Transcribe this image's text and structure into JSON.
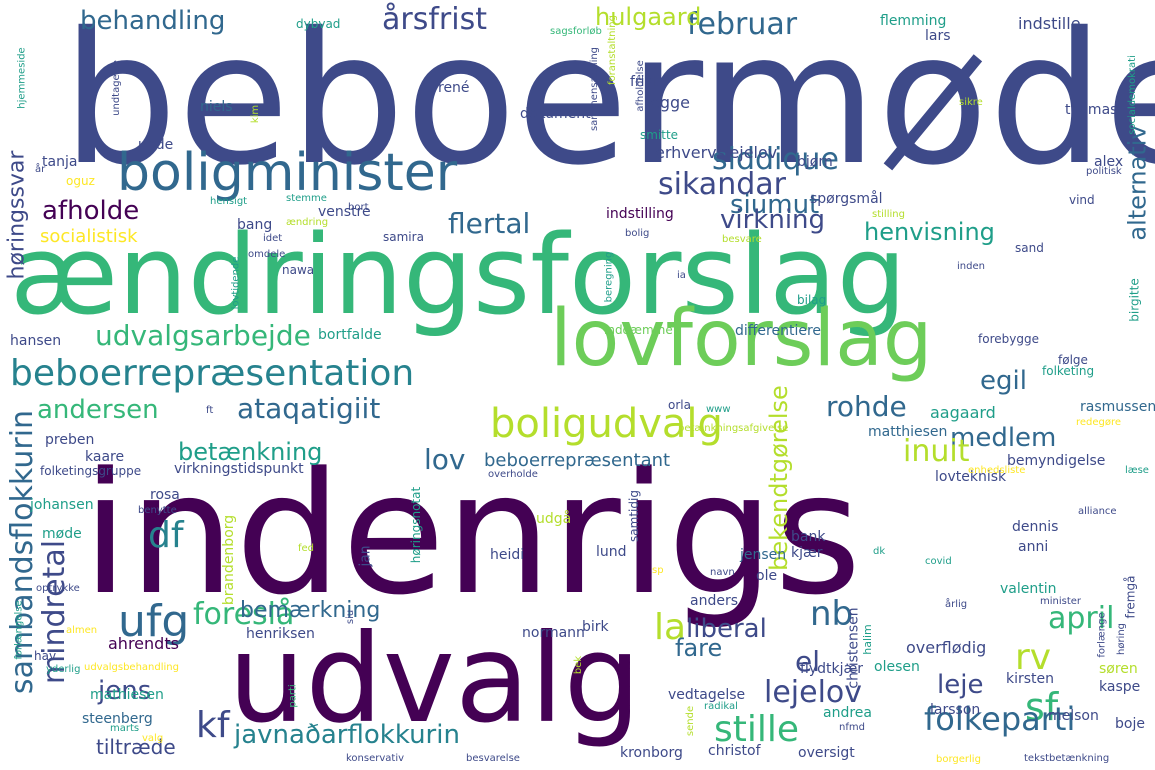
{
  "colors": {
    "background": "#ffffff",
    "palette": [
      "#440154",
      "#482878",
      "#3e4a89",
      "#31688e",
      "#26828e",
      "#1f9e89",
      "#35b779",
      "#6dcd59",
      "#b4de2c",
      "#fde725"
    ]
  },
  "words": [
    {
      "text": "beboermøde",
      "color": "#3e4a89"
    },
    {
      "text": "ændringsforslag",
      "color": "#35b779"
    },
    {
      "text": "indenrigs",
      "color": "#440154"
    },
    {
      "text": "udvalg",
      "color": "#440154"
    },
    {
      "text": "boligminister",
      "color": "#31688e"
    },
    {
      "text": "lovforslag",
      "color": "#6dcd59"
    },
    {
      "text": "beboerrepræsentation",
      "color": "#26828e"
    },
    {
      "text": "boligudvalg",
      "color": "#b4de2c"
    },
    {
      "text": "sambandsflokkurin",
      "color": "#31688e"
    },
    {
      "text": "mindretal",
      "color": "#3e4a89"
    },
    {
      "text": "udvalgsarbejde",
      "color": "#35b779"
    },
    {
      "text": "javnaðarflokkurin",
      "color": "#26828e"
    },
    {
      "text": "ataqatigiit",
      "color": "#31688e"
    },
    {
      "text": "siddique",
      "color": "#31688e"
    },
    {
      "text": "sikandar",
      "color": "#3e4a89"
    },
    {
      "text": "siumut",
      "color": "#31688e"
    },
    {
      "text": "flertal",
      "color": "#31688e"
    },
    {
      "text": "virkning",
      "color": "#3e4a89"
    },
    {
      "text": "afholde",
      "color": "#440154"
    },
    {
      "text": "behandling",
      "color": "#31688e"
    },
    {
      "text": "årsfrist",
      "color": "#3e4a89"
    },
    {
      "text": "februar",
      "color": "#31688e"
    },
    {
      "text": "hulgaard",
      "color": "#b4de2c"
    },
    {
      "text": "alternativ",
      "color": "#31688e"
    },
    {
      "text": "høringssvar",
      "color": "#3e4a89"
    },
    {
      "text": "henvisning",
      "color": "#1f9e89"
    },
    {
      "text": "socialistisk",
      "color": "#fde725"
    },
    {
      "text": "andersen",
      "color": "#35b779"
    },
    {
      "text": "rohde",
      "color": "#31688e"
    },
    {
      "text": "egil",
      "color": "#31688e"
    },
    {
      "text": "medlem",
      "color": "#31688e"
    },
    {
      "text": "inuit",
      "color": "#b4de2c"
    },
    {
      "text": "bekendtgørelse",
      "color": "#b4de2c"
    },
    {
      "text": "betænkning",
      "color": "#1f9e89"
    },
    {
      "text": "lov",
      "color": "#31688e"
    },
    {
      "text": "beboerrepræsentant",
      "color": "#31688e"
    },
    {
      "text": "df",
      "color": "#26828e"
    },
    {
      "text": "foreslå",
      "color": "#35b779"
    },
    {
      "text": "ufg",
      "color": "#31688e"
    },
    {
      "text": "bemærkning",
      "color": "#31688e"
    },
    {
      "text": "nb",
      "color": "#31688e"
    },
    {
      "text": "la",
      "color": "#b4de2c"
    },
    {
      "text": "liberal",
      "color": "#3e4a89"
    },
    {
      "text": "april",
      "color": "#35b779"
    },
    {
      "text": "rv",
      "color": "#b4de2c"
    },
    {
      "text": "el",
      "color": "#3e4a89"
    },
    {
      "text": "fare",
      "color": "#31688e"
    },
    {
      "text": "lejelov",
      "color": "#3e4a89"
    },
    {
      "text": "leje",
      "color": "#3e4a89"
    },
    {
      "text": "sf",
      "color": "#35b779"
    },
    {
      "text": "jens",
      "color": "#3e4a89"
    },
    {
      "text": "kf",
      "color": "#3e4a89"
    },
    {
      "text": "stille",
      "color": "#35b779"
    },
    {
      "text": "folkeparti",
      "color": "#31688e"
    },
    {
      "text": "tiltræde",
      "color": "#3e4a89"
    },
    {
      "text": "aagaard",
      "color": "#1f9e89"
    },
    {
      "text": "matthiesen",
      "color": "#31688e"
    },
    {
      "text": "bemyndigelse",
      "color": "#3e4a89"
    },
    {
      "text": "lovteknisk",
      "color": "#3e4a89"
    },
    {
      "text": "rasmussen",
      "color": "#31688e"
    },
    {
      "text": "preben",
      "color": "#3e4a89"
    },
    {
      "text": "kaare",
      "color": "#3e4a89"
    },
    {
      "text": "virkningstidspunkt",
      "color": "#3e4a89"
    },
    {
      "text": "folketingsgruppe",
      "color": "#3e4a89"
    },
    {
      "text": "ahrendts",
      "color": "#440154"
    },
    {
      "text": "henriksen",
      "color": "#3e4a89"
    },
    {
      "text": "normann",
      "color": "#3e4a89"
    },
    {
      "text": "birk",
      "color": "#3e4a89"
    },
    {
      "text": "overflødig",
      "color": "#3e4a89"
    },
    {
      "text": "olesen",
      "color": "#1f9e89"
    },
    {
      "text": "kirsten",
      "color": "#3e4a89"
    },
    {
      "text": "steenberg",
      "color": "#31688e"
    },
    {
      "text": "mathiesen",
      "color": "#1f9e89"
    },
    {
      "text": "vedtagelse",
      "color": "#3e4a89"
    },
    {
      "text": "andrea",
      "color": "#1f9e89"
    },
    {
      "text": "larsson",
      "color": "#3e4a89"
    },
    {
      "text": "christof",
      "color": "#3e4a89"
    },
    {
      "text": "oversigt",
      "color": "#3e4a89"
    },
    {
      "text": "kronborg",
      "color": "#3e4a89"
    },
    {
      "text": "heidi",
      "color": "#3e4a89"
    },
    {
      "text": "lund",
      "color": "#3e4a89"
    },
    {
      "text": "jensen",
      "color": "#31688e"
    },
    {
      "text": "ole",
      "color": "#3e4a89"
    },
    {
      "text": "valentin",
      "color": "#1f9e89"
    },
    {
      "text": "dennis",
      "color": "#3e4a89"
    },
    {
      "text": "anni",
      "color": "#3e4a89"
    },
    {
      "text": "bank",
      "color": "#3e4a89"
    },
    {
      "text": "kjær",
      "color": "#3e4a89"
    },
    {
      "text": "egge",
      "color": "#3e4a89"
    },
    {
      "text": "dokument",
      "color": "#3e4a89"
    },
    {
      "text": "erhvervslejelov",
      "color": "#3e4a89"
    },
    {
      "text": "venstre",
      "color": "#3e4a89"
    },
    {
      "text": "indstilling",
      "color": "#440154"
    },
    {
      "text": "spørgsmål",
      "color": "#3e4a89"
    },
    {
      "text": "bjørn",
      "color": "#3e4a89"
    },
    {
      "text": "alex",
      "color": "#3e4a89"
    },
    {
      "text": "thomas",
      "color": "#3e4a89"
    },
    {
      "text": "indstille",
      "color": "#3e4a89"
    },
    {
      "text": "flemming",
      "color": "#1f9e89"
    },
    {
      "text": "lars",
      "color": "#3e4a89"
    },
    {
      "text": "niels",
      "color": "#31688e"
    },
    {
      "text": "tanja",
      "color": "#3e4a89"
    },
    {
      "text": "differentiere",
      "color": "#31688e"
    },
    {
      "text": "bortfalde",
      "color": "#1f9e89"
    },
    {
      "text": "hansen",
      "color": "#3e4a89"
    },
    {
      "text": "nawa",
      "color": "#3e4a89"
    },
    {
      "text": "bang",
      "color": "#3e4a89"
    },
    {
      "text": "samira",
      "color": "#3e4a89"
    },
    {
      "text": "orla",
      "color": "#3e4a89"
    },
    {
      "text": "johansen",
      "color": "#1f9e89"
    },
    {
      "text": "rosa",
      "color": "#3e4a89"
    },
    {
      "text": "møde",
      "color": "#1f9e89"
    },
    {
      "text": "smitte",
      "color": "#1f9e89"
    },
    {
      "text": "frist",
      "color": "#3e4a89"
    },
    {
      "text": "rené",
      "color": "#3e4a89"
    },
    {
      "text": "unde",
      "color": "#3e4a89"
    },
    {
      "text": "bilag",
      "color": "#1f9e89"
    },
    {
      "text": "inddæmme",
      "color": "#6dcd59"
    },
    {
      "text": "forebygge",
      "color": "#3e4a89"
    },
    {
      "text": "følge",
      "color": "#3e4a89"
    },
    {
      "text": "folketing",
      "color": "#1f9e89"
    },
    {
      "text": "sand",
      "color": "#3e4a89"
    },
    {
      "text": "vind",
      "color": "#3e4a89"
    },
    {
      "text": "hav",
      "color": "#3e4a89"
    },
    {
      "text": "anders",
      "color": "#3e4a89"
    },
    {
      "text": "flydtkjær",
      "color": "#3e4a89"
    },
    {
      "text": "søren",
      "color": "#b4de2c"
    },
    {
      "text": "kaspe",
      "color": "#3e4a89"
    },
    {
      "text": "melson",
      "color": "#3e4a89"
    },
    {
      "text": "boje",
      "color": "#3e4a89"
    },
    {
      "text": "christensen",
      "color": "#3e4a89"
    },
    {
      "text": "halim",
      "color": "#1f9e89"
    },
    {
      "text": "fremgå",
      "color": "#3e4a89"
    },
    {
      "text": "jan",
      "color": "#3e4a89"
    },
    {
      "text": "udgå",
      "color": "#b4de2c"
    },
    {
      "text": "brandenborg",
      "color": "#b4de2c"
    },
    {
      "text": "høringsnotat",
      "color": "#1f9e89"
    },
    {
      "text": "samtidig",
      "color": "#3e4a89"
    },
    {
      "text": "dybvad",
      "color": "#1f9e89"
    },
    {
      "text": "kim",
      "color": "#b4de2c"
    },
    {
      "text": "oguz",
      "color": "#fde725"
    },
    {
      "text": "alliance",
      "color": "#3e4a89"
    },
    {
      "text": "covid",
      "color": "#1f9e89"
    },
    {
      "text": "dk",
      "color": "#1f9e89"
    },
    {
      "text": "radikal",
      "color": "#1f9e89"
    },
    {
      "text": "konservativ",
      "color": "#3e4a89"
    },
    {
      "text": "besvarelse",
      "color": "#3e4a89"
    },
    {
      "text": "borgerlig",
      "color": "#fde725"
    },
    {
      "text": "tekstbetænkning",
      "color": "#3e4a89"
    },
    {
      "text": "sagsforløb",
      "color": "#35b779"
    },
    {
      "text": "overholde",
      "color": "#3e4a89"
    },
    {
      "text": "udvalgsbehandling",
      "color": "#fde725"
    },
    {
      "text": "yderlig",
      "color": "#1f9e89"
    },
    {
      "text": "parti",
      "color": "#35b779"
    },
    {
      "text": "marts",
      "color": "#1f9e89"
    },
    {
      "text": "valg",
      "color": "#fde725"
    },
    {
      "text": "optrykke",
      "color": "#3e4a89"
    },
    {
      "text": "forlængelse",
      "color": "#1f9e89"
    },
    {
      "text": "almen",
      "color": "#fde725"
    },
    {
      "text": "betænkningsafgivelse",
      "color": "#b4de2c"
    },
    {
      "text": "redegøre",
      "color": "#fde725"
    },
    {
      "text": "enhedsliste",
      "color": "#fde725"
    },
    {
      "text": "læse",
      "color": "#1f9e89"
    },
    {
      "text": "minister",
      "color": "#3e4a89"
    },
    {
      "text": "forlænge",
      "color": "#3e4a89"
    },
    {
      "text": "årlig",
      "color": "#3e4a89"
    },
    {
      "text": "birgitte",
      "color": "#1f9e89"
    },
    {
      "text": "inden",
      "color": "#3e4a89"
    },
    {
      "text": "stilling",
      "color": "#b4de2c"
    },
    {
      "text": "socialdemokrati",
      "color": "#1f9e89"
    },
    {
      "text": "politisk",
      "color": "#3e4a89"
    },
    {
      "text": "sikre",
      "color": "#b4de2c"
    },
    {
      "text": "afholdelse",
      "color": "#3e4a89"
    },
    {
      "text": "foranstaltning",
      "color": "#b4de2c"
    },
    {
      "text": "sammensætning",
      "color": "#3e4a89"
    },
    {
      "text": "undtagelse",
      "color": "#3e4a89"
    },
    {
      "text": "hjemmeside",
      "color": "#1f9e89"
    },
    {
      "text": "år",
      "color": "#3e4a89"
    },
    {
      "text": "hensigt",
      "color": "#1f9e89"
    },
    {
      "text": "stemme",
      "color": "#1f9e89"
    },
    {
      "text": "bort",
      "color": "#3e4a89"
    },
    {
      "text": "ændring",
      "color": "#b4de2c"
    },
    {
      "text": "idet",
      "color": "#3e4a89"
    },
    {
      "text": "bolig",
      "color": "#3e4a89"
    },
    {
      "text": "besvare",
      "color": "#b4de2c"
    },
    {
      "text": "beregning",
      "color": "#1f9e89"
    },
    {
      "text": "lovtidende",
      "color": "#1f9e89"
    },
    {
      "text": "omdele",
      "color": "#3e4a89"
    },
    {
      "text": "ia",
      "color": "#3e4a89"
    },
    {
      "text": "ft",
      "color": "#3e4a89"
    },
    {
      "text": "www",
      "color": "#1f9e89"
    },
    {
      "text": "benytte",
      "color": "#3e4a89"
    },
    {
      "text": "fed",
      "color": "#b4de2c"
    },
    {
      "text": "siu",
      "color": "#3e4a89"
    },
    {
      "text": "sp",
      "color": "#fde725"
    },
    {
      "text": "navn",
      "color": "#3e4a89"
    },
    {
      "text": "bek",
      "color": "#b4de2c"
    },
    {
      "text": "sende",
      "color": "#b4de2c"
    },
    {
      "text": "nfmd",
      "color": "#3e4a89"
    },
    {
      "text": "høring",
      "color": "#3e4a89"
    }
  ]
}
